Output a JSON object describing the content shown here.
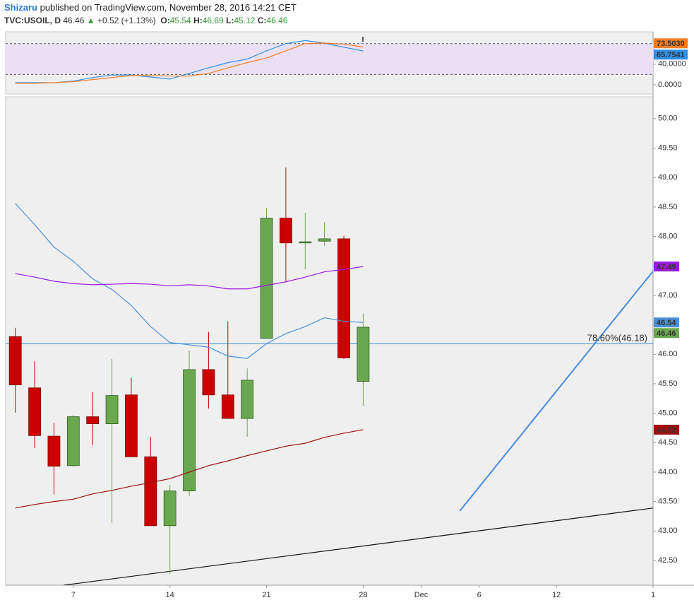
{
  "header": {
    "author": "Shizaru",
    "published": "published on TradingView.com, November 28, 2016 14:21 CET",
    "symbol": "TVC:USOIL, D",
    "last": "46.46",
    "arrow": "▲",
    "change": "+0.52 (+1.13%)",
    "ohlc": [
      [
        "O:",
        "45.54"
      ],
      [
        "H:",
        "46.69"
      ],
      [
        "L:",
        "45.12"
      ],
      [
        "C:",
        "46.46"
      ]
    ]
  },
  "chart_data": [
    {
      "type": "line",
      "x": [
        -8,
        -7,
        -6,
        -5,
        -4,
        -3,
        -2,
        -1,
        0,
        1,
        2,
        3,
        4,
        5,
        6,
        7,
        8,
        9,
        10
      ],
      "xlim": [
        -8.5,
        25
      ],
      "ylim": [
        -18,
        103
      ],
      "yticks": [
        {
          "value": 40,
          "label": "40.0000"
        },
        {
          "value": 0,
          "label": "0.0000"
        }
      ],
      "bands": [
        20,
        80
      ],
      "band_color": "#ebe0f3",
      "series": [
        {
          "color": "#2f8fe6",
          "values": [
            4,
            4,
            4,
            7,
            14,
            19,
            19,
            15,
            11,
            22,
            33,
            43,
            50,
            66,
            80,
            86,
            81,
            73,
            65.7541
          ],
          "value_labels": [
            null,
            null,
            null,
            null,
            null,
            null,
            null,
            null,
            null,
            null,
            null,
            null,
            null,
            null,
            null,
            null,
            null,
            null,
            "65.7541"
          ]
        },
        {
          "color": "#f57c22",
          "values": [
            3,
            3,
            4,
            6,
            10,
            14,
            18,
            18,
            17,
            17,
            22,
            33,
            43,
            52,
            66,
            80,
            81,
            79,
            73.503
          ],
          "value_labels": [
            null,
            null,
            null,
            null,
            null,
            null,
            null,
            null,
            null,
            null,
            null,
            null,
            null,
            null,
            null,
            null,
            null,
            null,
            "73.5030"
          ]
        }
      ]
    },
    {
      "type": "candlestick",
      "x": [
        -8,
        -7,
        -6,
        -5,
        -4,
        -3,
        -2,
        -1,
        0,
        1,
        2,
        3,
        4,
        5,
        6,
        7,
        8,
        9,
        10
      ],
      "open": [
        46.3,
        45.43,
        44.61,
        44.11,
        44.94,
        44.82,
        45.31,
        44.26,
        43.09,
        43.68,
        45.74,
        45.31,
        44.91,
        46.27,
        48.31,
        47.89,
        47.92,
        47.96,
        45.54
      ],
      "high": [
        46.45,
        45.88,
        44.84,
        44.97,
        45.36,
        45.92,
        45.6,
        44.6,
        43.78,
        46.06,
        46.38,
        46.56,
        45.76,
        48.49,
        49.17,
        48.4,
        48.24,
        48.01,
        46.69
      ],
      "low": [
        45.01,
        44.41,
        43.62,
        44.1,
        44.46,
        43.14,
        44.26,
        43.09,
        42.27,
        43.59,
        45.08,
        44.91,
        44.6,
        46.27,
        47.24,
        47.44,
        47.84,
        45.92,
        45.12
      ],
      "close": [
        45.48,
        44.62,
        44.1,
        44.94,
        44.82,
        45.3,
        44.26,
        43.09,
        43.68,
        45.74,
        45.31,
        44.91,
        45.56,
        48.31,
        47.89,
        47.91,
        47.96,
        45.94,
        46.46
      ],
      "up_color": "#6aa84f",
      "down_color": "#cc0000",
      "lines": [
        {
          "color": "#4a90d9",
          "values": [
            48.56,
            48.2,
            47.82,
            47.58,
            47.28,
            47.1,
            46.83,
            46.47,
            46.2,
            46.16,
            46.12,
            45.97,
            45.93,
            46.18,
            46.35,
            46.47,
            46.62,
            46.56,
            46.54
          ]
        },
        {
          "color": "#9b19e6",
          "values": [
            47.37,
            47.31,
            47.24,
            47.2,
            47.18,
            47.19,
            47.2,
            47.19,
            47.16,
            47.18,
            47.16,
            47.11,
            47.11,
            47.17,
            47.23,
            47.31,
            47.4,
            47.44,
            47.49
          ]
        },
        {
          "color": "#9c1111",
          "values": [
            43.39,
            43.45,
            43.5,
            43.54,
            43.63,
            43.69,
            43.76,
            43.82,
            43.89,
            44.0,
            44.11,
            44.19,
            44.28,
            44.36,
            44.44,
            44.49,
            44.59,
            44.66,
            44.72
          ]
        }
      ],
      "level": {
        "value": 46.18,
        "label": "78.60%(46.18)",
        "color": "#3d8fd1"
      },
      "trendlines": [
        {
          "color": "#4a8be0",
          "x": [
            15,
            25
          ],
          "y": [
            43.34,
            47.41
          ]
        },
        {
          "color": "#111111",
          "x": [
            -5.5,
            25
          ],
          "y": [
            42.08,
            43.39
          ]
        }
      ],
      "xlim": [
        -8.5,
        25
      ],
      "ylim": [
        42.08,
        50.37
      ],
      "yticks": [
        {
          "value": 42.5,
          "label": "42.50"
        },
        {
          "value": 43,
          "label": "43.00"
        },
        {
          "value": 43.5,
          "label": "43.50"
        },
        {
          "value": 44,
          "label": "44.00"
        },
        {
          "value": 44.5,
          "label": "44.50"
        },
        {
          "value": 45,
          "label": "45.00"
        },
        {
          "value": 45.5,
          "label": "45.50"
        },
        {
          "value": 46,
          "label": "46.00"
        },
        {
          "value": 46.5,
          "label": "46.50"
        },
        {
          "value": 47,
          "label": "47.00"
        },
        {
          "value": 47.5,
          "label": "47.50"
        },
        {
          "value": 48,
          "label": "48.00"
        },
        {
          "value": 48.5,
          "label": "48.50"
        },
        {
          "value": 49,
          "label": "49.00"
        },
        {
          "value": 49.5,
          "label": "49.50"
        },
        {
          "value": 50,
          "label": "50.00"
        }
      ],
      "xticks": [
        {
          "value": -5,
          "label": "7"
        },
        {
          "value": 0,
          "label": "14"
        },
        {
          "value": 5,
          "label": "21"
        },
        {
          "value": 10,
          "label": "28"
        },
        {
          "value": 13,
          "label": "Dec"
        },
        {
          "value": 16,
          "label": "6"
        },
        {
          "value": 20,
          "label": "12"
        },
        {
          "value": 25,
          "label": "1"
        }
      ]
    }
  ]
}
